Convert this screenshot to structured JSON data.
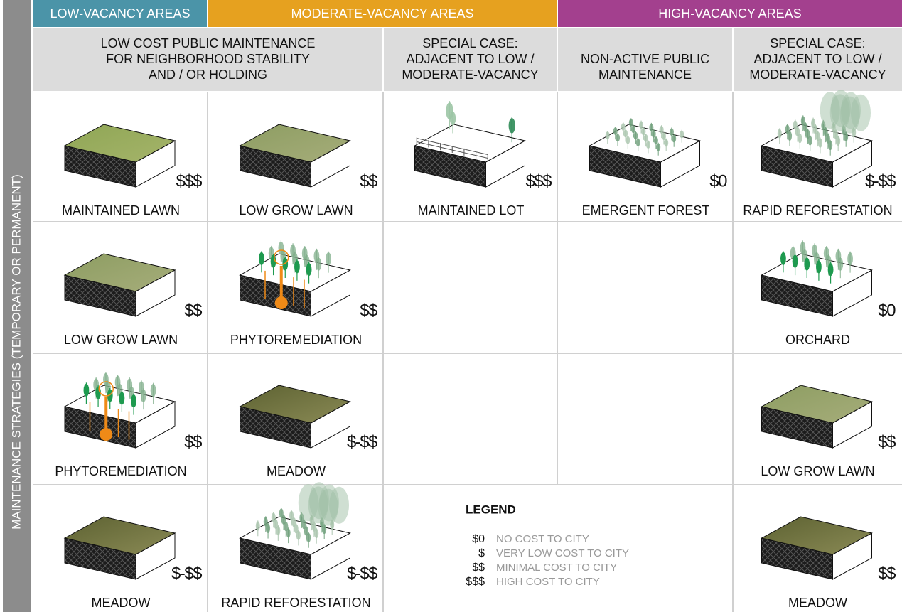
{
  "side_label": "MAINTENANCE STRATEGIES (TEMPORARY OR PERMANENT)",
  "header": {
    "areas": [
      "LOW-VACANCY AREAS",
      "MODERATE-VACANCY AREAS",
      "HIGH-VACANCY AREAS"
    ],
    "columns": [
      [
        "LOW COST PUBLIC MAINTENANCE",
        "FOR NEIGHBORHOOD STABILITY",
        "AND / OR HOLDING"
      ],
      [
        "SPECIAL CASE:",
        "ADJACENT TO LOW /",
        "MODERATE-VACANCY"
      ],
      [
        "NON-ACTIVE PUBLIC",
        "MAINTENANCE"
      ],
      [
        "SPECIAL CASE:",
        "ADJACENT TO LOW /",
        "MODERATE-VACANCY"
      ]
    ]
  },
  "grid": {
    "rows": [
      [
        {
          "cost": "$$$",
          "label": "MAINTAINED LAWN"
        },
        {
          "cost": "$$",
          "label": "LOW GROW LAWN"
        },
        {
          "cost": "$$$",
          "label": "MAINTAINED LOT"
        },
        {
          "cost": "$0",
          "label": "EMERGENT FOREST"
        },
        {
          "cost": "$-$$",
          "label": "RAPID REFORESTATION"
        }
      ],
      [
        {
          "cost": "$$",
          "label": "LOW GROW LAWN"
        },
        {
          "cost": "$$",
          "label": "PHYTOREMEDIATION"
        },
        null,
        null,
        {
          "cost": "$0",
          "label": "ORCHARD"
        }
      ],
      [
        {
          "cost": "$$",
          "label": "PHYTOREMEDIATION"
        },
        {
          "cost": "$-$$",
          "label": "MEADOW"
        },
        null,
        null,
        {
          "cost": "$$",
          "label": "LOW GROW LAWN"
        }
      ],
      [
        {
          "cost": "$-$$",
          "label": "MEADOW"
        },
        {
          "cost": "$-$$",
          "label": "RAPID REFORESTATION"
        },
        null,
        null,
        {
          "cost": "$$",
          "label": "MEADOW"
        }
      ]
    ]
  },
  "legend": {
    "title": "LEGEND",
    "items": [
      {
        "symbol": "$0",
        "text": "NO COST TO CITY"
      },
      {
        "symbol": "$",
        "text": "VERY LOW COST TO CITY"
      },
      {
        "symbol": "$$",
        "text": "MINIMAL COST TO CITY"
      },
      {
        "symbol": "$$$",
        "text": "HIGH COST TO CITY"
      }
    ]
  }
}
